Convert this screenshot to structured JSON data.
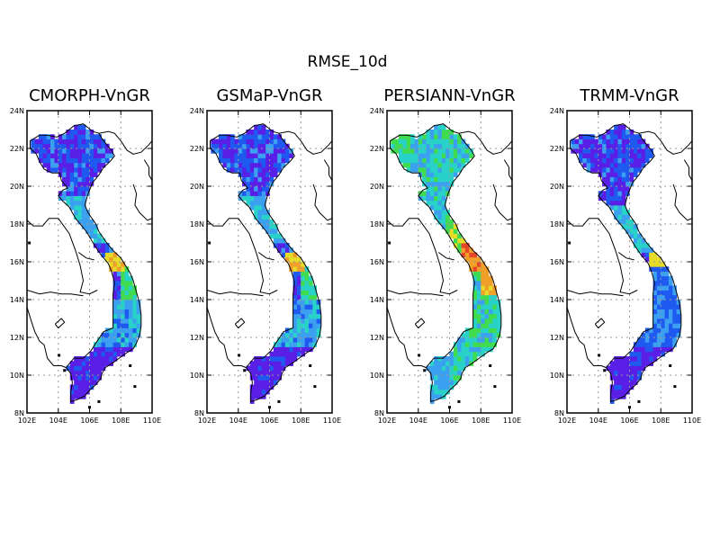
{
  "figure_title": "RMSE_10d",
  "panels": [
    {
      "title": "CMORPH-VnGR",
      "palette": "cmorph"
    },
    {
      "title": "GSMaP-VnGR",
      "palette": "gsmap"
    },
    {
      "title": "PERSIANN-VnGR",
      "palette": "persiann"
    },
    {
      "title": "TRMM-VnGR",
      "palette": "trmm"
    }
  ],
  "x_ticks": [
    "102E",
    "104E",
    "106E",
    "108E",
    "110E"
  ],
  "y_ticks": [
    "24N",
    "22N",
    "20N",
    "18N",
    "16N",
    "14N",
    "12N",
    "10N",
    "8N"
  ],
  "colors": {
    "violet": "#5a1fe6",
    "blue": "#1f5af0",
    "lightblue": "#3ca0f0",
    "cyan": "#28d2c8",
    "green": "#40dc50",
    "yellow": "#e6dc28",
    "orange": "#f0a028",
    "red": "#e64628"
  }
}
